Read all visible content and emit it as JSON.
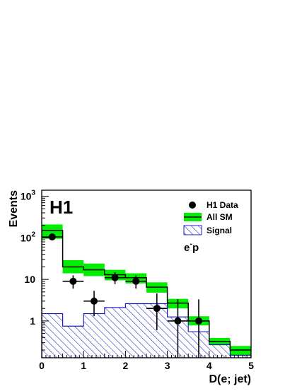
{
  "chart_data": {
    "type": "bar",
    "title": "",
    "xlabel": "D(e; jet)",
    "ylabel": "Events",
    "xlim": [
      0,
      5
    ],
    "ylim": [
      0.13,
      1400
    ],
    "yscale": "log",
    "bin_edges": [
      0,
      0.5,
      1,
      1.5,
      2,
      2.5,
      3,
      3.5,
      4,
      4.5,
      5
    ],
    "xticks": [
      "0",
      "1",
      "2",
      "3",
      "4",
      "5"
    ],
    "xtick_values": [
      0,
      1,
      2,
      3,
      4,
      5
    ],
    "yticks": [
      {
        "base": "10",
        "exp": "3",
        "value": 1000
      },
      {
        "base": "10",
        "exp": "2",
        "value": 100
      },
      {
        "base": "10",
        "exp": "",
        "value": 10
      },
      {
        "base": "1",
        "exp": "",
        "value": 1
      }
    ],
    "logo": "H1",
    "annotation": {
      "base": "e",
      "sup": "-",
      "rest": "p"
    },
    "legend_position": "top-right",
    "legend": [
      "H1 Data",
      "All SM",
      "Signal"
    ],
    "colors": {
      "all_sm_band": "#00ee00",
      "signal_hatch": "#1d1dbf",
      "data": "#000000",
      "line": "#000000"
    },
    "series": [
      {
        "name": "All SM",
        "kind": "step-with-band",
        "values": [
          150,
          20,
          17,
          13,
          11,
          6.5,
          2.7,
          1.0,
          0.32,
          0.2
        ],
        "band_low": [
          95,
          14,
          12,
          9.5,
          8,
          4.8,
          2.0,
          0.78,
          0.26,
          0.15
        ],
        "band_high": [
          210,
          29,
          24,
          17,
          14,
          8.5,
          3.4,
          1.3,
          0.39,
          0.25
        ]
      },
      {
        "name": "Signal",
        "kind": "hatched-step",
        "values": [
          1.5,
          0.75,
          1.5,
          2.1,
          2.6,
          2.6,
          1.25,
          0.55,
          0.27,
          0.15
        ]
      },
      {
        "name": "H1 Data",
        "kind": "points",
        "x": [
          0.25,
          0.75,
          1.25,
          1.75,
          2.25,
          2.75,
          3.25,
          3.75
        ],
        "y": [
          105,
          9,
          3,
          11,
          9,
          2,
          1,
          1
        ],
        "y_err_low": [
          10,
          3,
          1.7,
          3.3,
          3,
          1.4,
          0.87,
          0.87
        ],
        "y_err_high": [
          10,
          3.5,
          2.3,
          4,
          3.5,
          2.6,
          2.3,
          2.3
        ],
        "x_halfwidth": [
          0.25,
          0.25,
          0.25,
          0.25,
          0.25,
          0.25,
          0.25,
          0.25
        ]
      }
    ]
  }
}
